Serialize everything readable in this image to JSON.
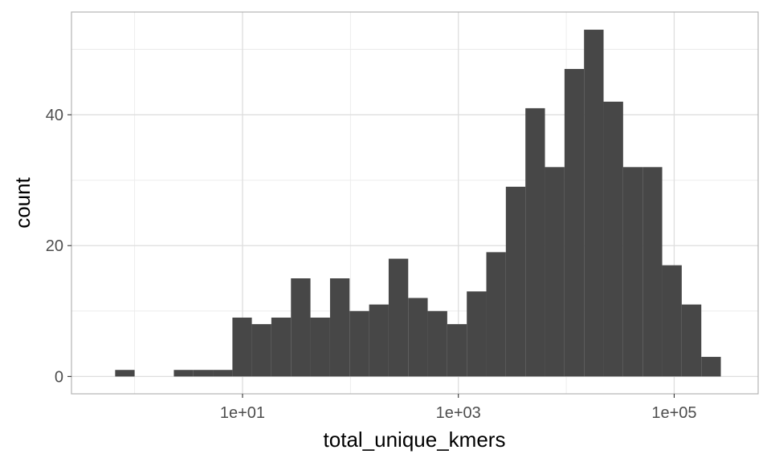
{
  "chart_data": {
    "type": "bar",
    "subtype": "histogram",
    "title": "",
    "xlabel": "total_unique_kmers",
    "ylabel": "count",
    "x_scale": "log10",
    "xlim": [
      0.26,
      600000
    ],
    "ylim": [
      -2.65,
      55.7
    ],
    "x_ticks": [
      {
        "value": 10,
        "label": "1e+01"
      },
      {
        "value": 1000,
        "label": "1e+03"
      },
      {
        "value": 100000,
        "label": "1e+05"
      }
    ],
    "x_minor_ticks": [
      1,
      100,
      10000
    ],
    "y_ticks": [
      {
        "value": 0,
        "label": "0"
      },
      {
        "value": 20,
        "label": "20"
      },
      {
        "value": 40,
        "label": "40"
      }
    ],
    "y_minor_ticks": [
      10,
      30,
      50
    ],
    "grid": true,
    "bar_color": "#474747",
    "bins": [
      {
        "x_start": 0.66,
        "x_end": 1.0,
        "count": 1
      },
      {
        "x_start": 1.0,
        "x_end": 1.52,
        "count": 0
      },
      {
        "x_start": 1.52,
        "x_end": 2.31,
        "count": 0
      },
      {
        "x_start": 2.31,
        "x_end": 3.5,
        "count": 1
      },
      {
        "x_start": 3.5,
        "x_end": 5.31,
        "count": 1
      },
      {
        "x_start": 5.31,
        "x_end": 8.06,
        "count": 1
      },
      {
        "x_start": 8.06,
        "x_end": 12.2,
        "count": 9
      },
      {
        "x_start": 12.2,
        "x_end": 18.5,
        "count": 8
      },
      {
        "x_start": 18.5,
        "x_end": 28.1,
        "count": 9
      },
      {
        "x_start": 28.1,
        "x_end": 42.6,
        "count": 15
      },
      {
        "x_start": 42.6,
        "x_end": 64.7,
        "count": 9
      },
      {
        "x_start": 64.7,
        "x_end": 98.2,
        "count": 15
      },
      {
        "x_start": 98.2,
        "x_end": 149,
        "count": 10
      },
      {
        "x_start": 149,
        "x_end": 226,
        "count": 11
      },
      {
        "x_start": 226,
        "x_end": 343,
        "count": 18
      },
      {
        "x_start": 343,
        "x_end": 520,
        "count": 12
      },
      {
        "x_start": 520,
        "x_end": 789,
        "count": 10
      },
      {
        "x_start": 789,
        "x_end": 1197,
        "count": 8
      },
      {
        "x_start": 1197,
        "x_end": 1816,
        "count": 13
      },
      {
        "x_start": 1816,
        "x_end": 2756,
        "count": 19
      },
      {
        "x_start": 2756,
        "x_end": 4182,
        "count": 29
      },
      {
        "x_start": 4182,
        "x_end": 6346,
        "count": 41
      },
      {
        "x_start": 6346,
        "x_end": 9630,
        "count": 32
      },
      {
        "x_start": 9630,
        "x_end": 14610,
        "count": 47
      },
      {
        "x_start": 14610,
        "x_end": 22170,
        "count": 53
      },
      {
        "x_start": 22170,
        "x_end": 33640,
        "count": 42
      },
      {
        "x_start": 33640,
        "x_end": 51050,
        "count": 32
      },
      {
        "x_start": 51050,
        "x_end": 77460,
        "count": 32
      },
      {
        "x_start": 77460,
        "x_end": 117500,
        "count": 17
      },
      {
        "x_start": 117500,
        "x_end": 178400,
        "count": 11
      },
      {
        "x_start": 178400,
        "x_end": 270600,
        "count": 3
      }
    ]
  }
}
